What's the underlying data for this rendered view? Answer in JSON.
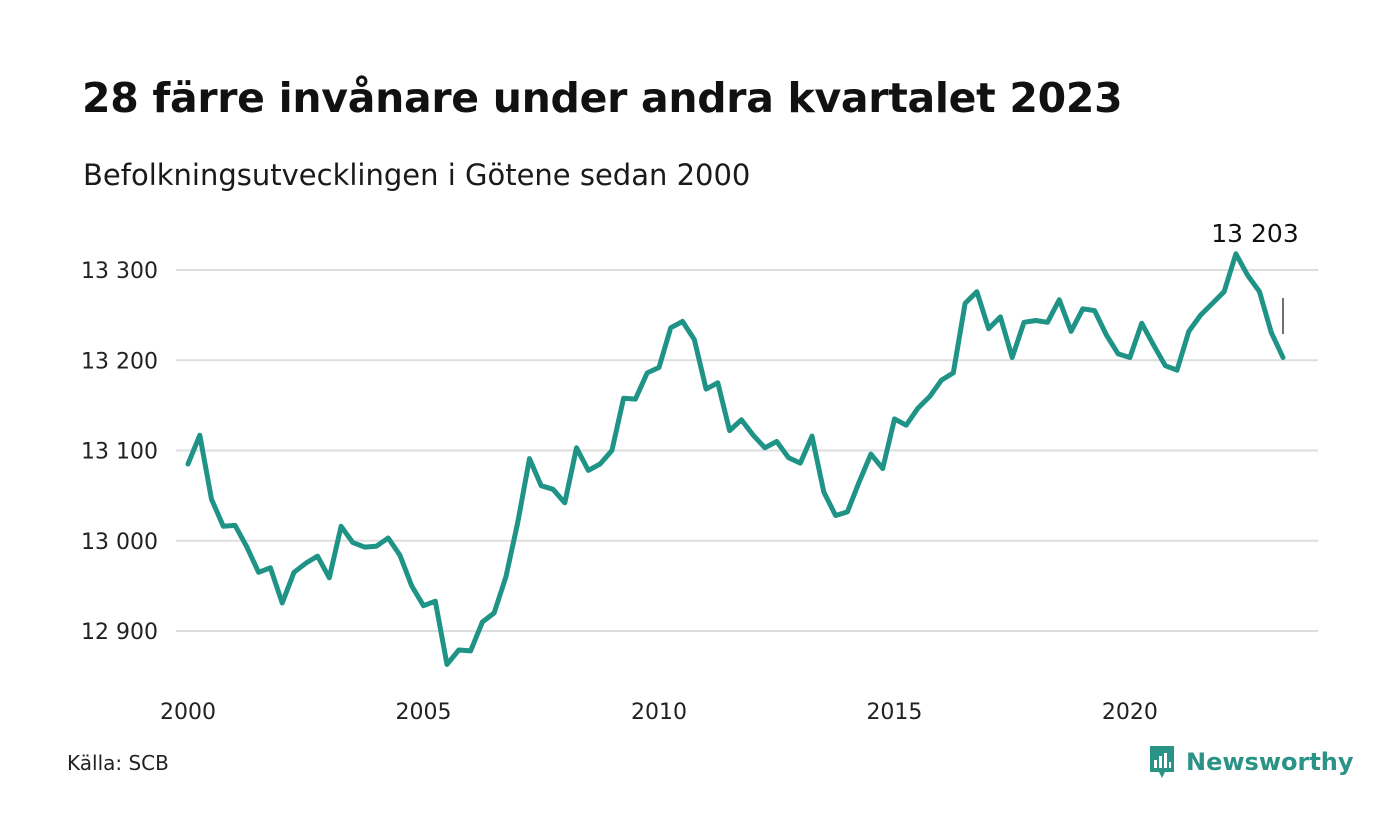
{
  "title": "28 färre invånare under andra kvartalet 2023",
  "subtitle": "Befolkningsutvecklingen i Götene sedan 2000",
  "source": "Källa: SCB",
  "brand": {
    "name": "Newsworthy",
    "icon": "newsworthy-logo-icon",
    "color": "#2a9386"
  },
  "colors": {
    "line": "#1f9486",
    "grid": "#dddddd",
    "text": "#222222"
  },
  "chart_data": {
    "type": "line",
    "title": "28 färre invånare under andra kvartalet 2023",
    "subtitle": "Befolkningsutvecklingen i Götene sedan 2000",
    "xlabel": "",
    "ylabel": "",
    "x_start": 2000.0,
    "x_step": 0.25,
    "xlim": [
      2000,
      2023.8
    ],
    "ylim": [
      12855,
      13330
    ],
    "x_ticks": [
      2000,
      2005,
      2010,
      2015,
      2020
    ],
    "x_tick_labels": [
      "2000",
      "2005",
      "2010",
      "2015",
      "2020"
    ],
    "y_ticks": [
      12900,
      13000,
      13100,
      13200,
      13300
    ],
    "y_tick_labels": [
      "12 900",
      "13 000",
      "13 100",
      "13 200",
      "13 300"
    ],
    "grid": true,
    "legend": "none",
    "values": [
      13085,
      13117,
      13046,
      13016,
      13017,
      12993,
      12965,
      12970,
      12931,
      12965,
      12975,
      12983,
      12959,
      13016,
      12998,
      12993,
      12994,
      13003,
      12984,
      12950,
      12928,
      12933,
      12863,
      12879,
      12878,
      12910,
      12920,
      12960,
      13020,
      13091,
      13061,
      13057,
      13042,
      13103,
      13078,
      13085,
      13100,
      13158,
      13157,
      13186,
      13192,
      13236,
      13243,
      13223,
      13168,
      13175,
      13122,
      13134,
      13117,
      13103,
      13110,
      13092,
      13086,
      13116,
      13054,
      13028,
      13032,
      13065,
      13096,
      13080,
      13135,
      13128,
      13147,
      13160,
      13178,
      13186,
      13263,
      13276,
      13235,
      13248,
      13203,
      13242,
      13244,
      13242,
      13267,
      13232,
      13257,
      13255,
      13228,
      13207,
      13203,
      13241,
      13217,
      13194,
      13189,
      13232,
      13250,
      13263,
      13276,
      13318,
      13294,
      13276,
      13231,
      13203
    ],
    "callout": {
      "label": "13 203",
      "value": 13203
    }
  }
}
